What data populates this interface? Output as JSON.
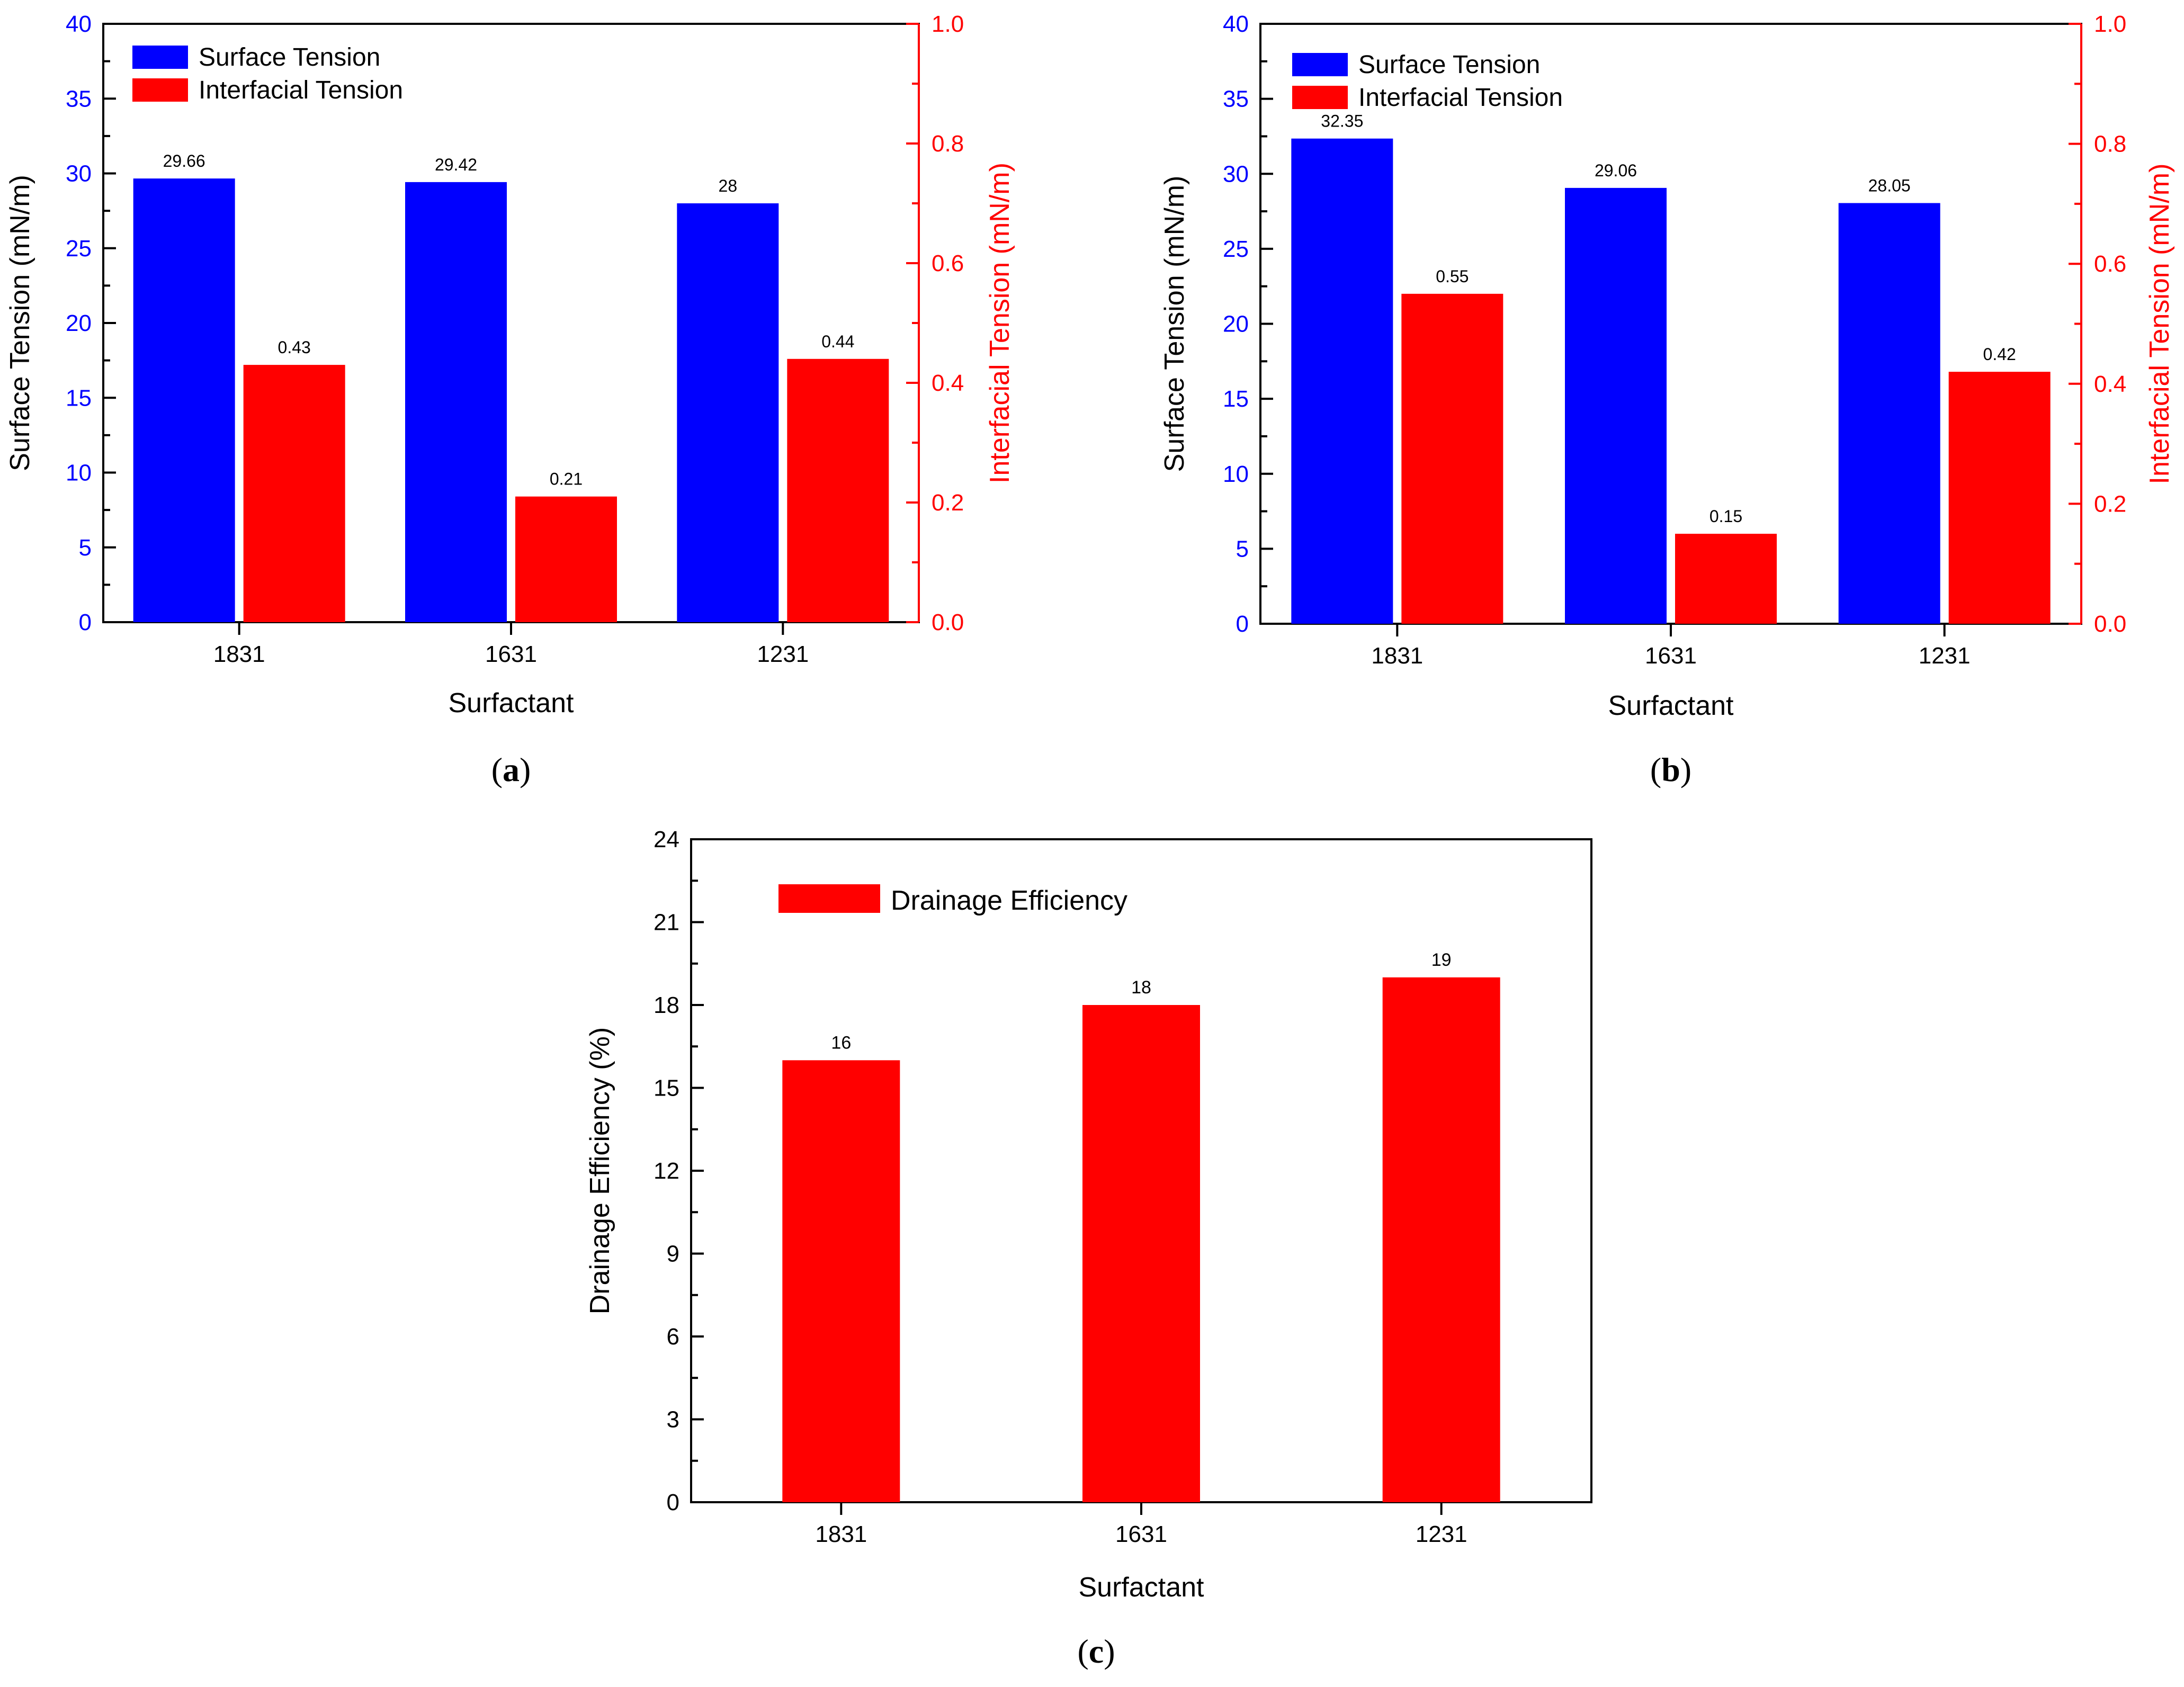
{
  "colors": {
    "surface": "#0000ff",
    "interfacial": "#ff0000",
    "drainage": "#ff0000",
    "axis": "#000000"
  },
  "chart_data": [
    {
      "id": "a",
      "type": "bar",
      "caption": {
        "open": "(",
        "letter": "a",
        "close": ")"
      },
      "categories": [
        "1831",
        "1631",
        "1231"
      ],
      "xlabel": "Surfactant",
      "left_axis": {
        "label": "Surface Tension (mN/m)",
        "ylim": [
          0,
          40
        ],
        "ticks": [
          "0",
          "5",
          "10",
          "15",
          "20",
          "25",
          "30",
          "35",
          "40"
        ]
      },
      "right_axis": {
        "label": "Interfacial Tension (mN/m)",
        "ylim": [
          0,
          1.0
        ],
        "ticks": [
          "0.0",
          "0.2",
          "0.4",
          "0.6",
          "0.8",
          "1.0"
        ]
      },
      "legend_position": "top-left",
      "series": [
        {
          "name": "Surface Tension",
          "axis": "left",
          "values": [
            29.66,
            29.42,
            28
          ],
          "labels": [
            "29.66",
            "29.42",
            "28"
          ]
        },
        {
          "name": "Interfacial Tension",
          "axis": "right",
          "values": [
            0.43,
            0.21,
            0.44
          ],
          "labels": [
            "0.43",
            "0.21",
            "0.44"
          ]
        }
      ]
    },
    {
      "id": "b",
      "type": "bar",
      "caption": {
        "open": "(",
        "letter": "b",
        "close": ")"
      },
      "categories": [
        "1831",
        "1631",
        "1231"
      ],
      "xlabel": "Surfactant",
      "left_axis": {
        "label": "Surface Tension (mN/m)",
        "ylim": [
          0,
          40
        ],
        "ticks": [
          "0",
          "5",
          "10",
          "15",
          "20",
          "25",
          "30",
          "35",
          "40"
        ]
      },
      "right_axis": {
        "label": "Interfacial Tension (mN/m)",
        "ylim": [
          0,
          1.0
        ],
        "ticks": [
          "0.0",
          "0.2",
          "0.4",
          "0.6",
          "0.8",
          "1.0"
        ]
      },
      "legend_position": "top-left",
      "series": [
        {
          "name": "Surface Tension",
          "axis": "left",
          "values": [
            32.35,
            29.06,
            28.05
          ],
          "labels": [
            "32.35",
            "29.06",
            "28.05"
          ]
        },
        {
          "name": "Interfacial Tension",
          "axis": "right",
          "values": [
            0.55,
            0.15,
            0.42
          ],
          "labels": [
            "0.55",
            "0.15",
            "0.42"
          ]
        }
      ]
    },
    {
      "id": "c",
      "type": "bar",
      "caption": {
        "open": "(",
        "letter": "c",
        "close": ")"
      },
      "categories": [
        "1831",
        "1631",
        "1231"
      ],
      "xlabel": "Surfactant",
      "left_axis": {
        "label": "Drainage Efficiency (%)",
        "ylim": [
          0,
          24
        ],
        "ticks": [
          "0",
          "3",
          "6",
          "9",
          "12",
          "15",
          "18",
          "21",
          "24"
        ]
      },
      "legend_position": "top-left",
      "series": [
        {
          "name": "Drainage Efficiency",
          "axis": "left",
          "values": [
            16,
            18,
            19
          ],
          "labels": [
            "16",
            "18",
            "19"
          ]
        }
      ]
    }
  ]
}
